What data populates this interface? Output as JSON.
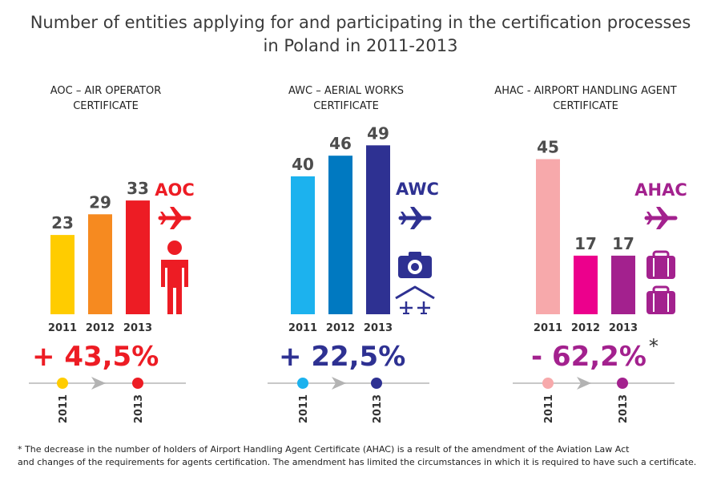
{
  "title_line1": "Number of entities applying for and participating in the certification processes",
  "title_line2": "in Poland in 2011-2013",
  "footnote_line1": "* The decrease in the number of holders of Airport Handling Agent Certificate (AHAC) is a result of the amendment of the Aviation Law Act",
  "footnote_line2": "and changes of the requirements for agents certification. The amendment has limited the circumstances in which it is required to have such a certificate.",
  "chart_data": [
    {
      "type": "bar",
      "id": "aoc",
      "title_line1": "AOC – AIR OPERATOR",
      "title_line2": "CERTIFICATE",
      "categories": [
        "2011",
        "2012",
        "2013"
      ],
      "values": [
        23,
        29,
        33
      ],
      "colors": [
        "#ffcc00",
        "#f68a20",
        "#ed1c24"
      ],
      "label": "AOC",
      "label_color": "#ed1c24",
      "icons": [
        "airplane-icon",
        "person-icon"
      ],
      "change": "+ 43,5%",
      "change_color": "#ed1c24",
      "timeline_start": "2011",
      "timeline_end": "2013",
      "timeline_start_color": "#ffcc00",
      "timeline_end_color": "#ed1c24"
    },
    {
      "type": "bar",
      "id": "awc",
      "title_line1": "AWC – AERIAL WORKS",
      "title_line2": "CERTIFICATE",
      "categories": [
        "2011",
        "2012",
        "2013"
      ],
      "values": [
        40,
        46,
        49
      ],
      "colors": [
        "#1cb2ee",
        "#0079c1",
        "#2e3192"
      ],
      "label": "AWC",
      "label_color": "#2e3192",
      "icons": [
        "airplane-icon",
        "camera-icon",
        "hangar-icon"
      ],
      "change": "+ 22,5%",
      "change_color": "#2e3192",
      "timeline_start": "2011",
      "timeline_end": "2013",
      "timeline_start_color": "#1cb2ee",
      "timeline_end_color": "#2e3192"
    },
    {
      "type": "bar",
      "id": "ahac",
      "title_line1": "AHAC - AIRPORT HANDLING AGENT",
      "title_line2": "CERTIFICATE",
      "categories": [
        "2011",
        "2012",
        "2013"
      ],
      "values": [
        45,
        17,
        17
      ],
      "colors": [
        "#f7a9ab",
        "#ec008c",
        "#a3218e"
      ],
      "label": "AHAC",
      "label_color": "#a3218e",
      "icons": [
        "airplane-icon",
        "suitcase-icon",
        "suitcase-icon"
      ],
      "change": "- 62,2%",
      "change_mark": "*",
      "change_color": "#a3218e",
      "timeline_start": "2011",
      "timeline_end": "2013",
      "timeline_start_color": "#f7a9ab",
      "timeline_end_color": "#a3218e"
    }
  ]
}
